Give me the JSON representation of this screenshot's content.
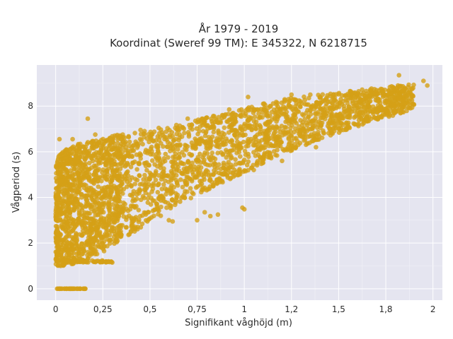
{
  "chart_data": {
    "type": "scatter",
    "title": "År 1979 - 2019",
    "subtitle": "Koordinat (Sweref 99 TM): E 345322, N 6218715",
    "xlabel": "Signifikant våghöjd (m)",
    "ylabel": "Vågperiod (s)",
    "xlim": [
      -0.1,
      2.05
    ],
    "ylim": [
      -0.5,
      9.8
    ],
    "x_ticks": [
      0,
      0.25,
      0.5,
      0.75,
      1,
      1.25,
      1.5,
      1.75,
      2
    ],
    "x_tick_labels": [
      "0",
      "0,25",
      "0,5",
      "0,75",
      "1",
      "1,2",
      "1,5",
      "1,8",
      "2"
    ],
    "y_ticks": [
      0,
      2,
      4,
      6,
      8
    ],
    "y_tick_labels": [
      "0",
      "2",
      "4",
      "6",
      "8"
    ],
    "grid": true,
    "marker_color": "#d4a017",
    "background_color": "#e5e5f0",
    "series": [
      {
        "band_envelope": {
          "x": [
            0.0,
            0.05,
            0.1,
            0.15,
            0.2,
            0.25,
            0.3,
            0.4,
            0.5,
            0.6,
            0.7,
            0.8,
            0.9,
            1.0,
            1.1,
            1.2,
            1.3,
            1.4,
            1.5,
            1.6,
            1.7,
            1.8,
            1.9
          ],
          "y_low": [
            1.0,
            1.0,
            1.1,
            1.2,
            1.4,
            1.6,
            1.9,
            2.4,
            2.9,
            3.4,
            3.9,
            4.3,
            4.7,
            5.1,
            5.5,
            5.9,
            6.2,
            6.5,
            6.8,
            7.1,
            7.4,
            7.6,
            7.9
          ],
          "y_high": [
            5.6,
            6.2,
            6.3,
            6.4,
            6.5,
            6.6,
            6.7,
            6.9,
            7.0,
            7.1,
            7.3,
            7.5,
            7.7,
            7.9,
            8.1,
            8.3,
            8.4,
            8.5,
            8.6,
            8.7,
            8.8,
            8.9,
            9.0
          ]
        },
        "outliers": [
          {
            "x": 0.17,
            "y": 7.45
          },
          {
            "x": 0.21,
            "y": 6.75
          },
          {
            "x": 1.02,
            "y": 8.4
          },
          {
            "x": 1.25,
            "y": 8.5
          },
          {
            "x": 1.26,
            "y": 8.3
          },
          {
            "x": 1.35,
            "y": 8.5
          },
          {
            "x": 1.82,
            "y": 9.35
          },
          {
            "x": 1.95,
            "y": 9.1
          },
          {
            "x": 1.97,
            "y": 8.9
          },
          {
            "x": 1.6,
            "y": 8.5
          },
          {
            "x": 0.99,
            "y": 3.55
          },
          {
            "x": 1.0,
            "y": 3.48
          },
          {
            "x": 0.86,
            "y": 3.25
          },
          {
            "x": 0.79,
            "y": 3.35
          },
          {
            "x": 0.82,
            "y": 3.18
          },
          {
            "x": 0.75,
            "y": 3.0
          },
          {
            "x": 0.6,
            "y": 3.0
          },
          {
            "x": 0.62,
            "y": 2.95
          },
          {
            "x": 0.3,
            "y": 1.15
          },
          {
            "x": 0.28,
            "y": 1.2
          },
          {
            "x": 0.25,
            "y": 1.2
          },
          {
            "x": 0.02,
            "y": 6.55
          },
          {
            "x": 0.09,
            "y": 6.55
          },
          {
            "x": 0.45,
            "y": 6.95
          },
          {
            "x": 0.7,
            "y": 7.45
          },
          {
            "x": 0.92,
            "y": 7.85
          },
          {
            "x": 1.1,
            "y": 8.1
          },
          {
            "x": 1.4,
            "y": 8.15
          },
          {
            "x": 1.7,
            "y": 8.7
          },
          {
            "x": 1.78,
            "y": 8.55
          },
          {
            "x": 1.85,
            "y": 8.75
          },
          {
            "x": 1.88,
            "y": 8.6
          },
          {
            "x": 1.2,
            "y": 5.6
          },
          {
            "x": 1.05,
            "y": 5.2
          },
          {
            "x": 1.38,
            "y": 6.2
          }
        ],
        "zero_line": {
          "y": 0,
          "x_from": 0.0,
          "x_to": 0.16
        },
        "low_line": {
          "y": 1.2,
          "x_from": 0.0,
          "x_to": 0.3
        }
      }
    ]
  }
}
